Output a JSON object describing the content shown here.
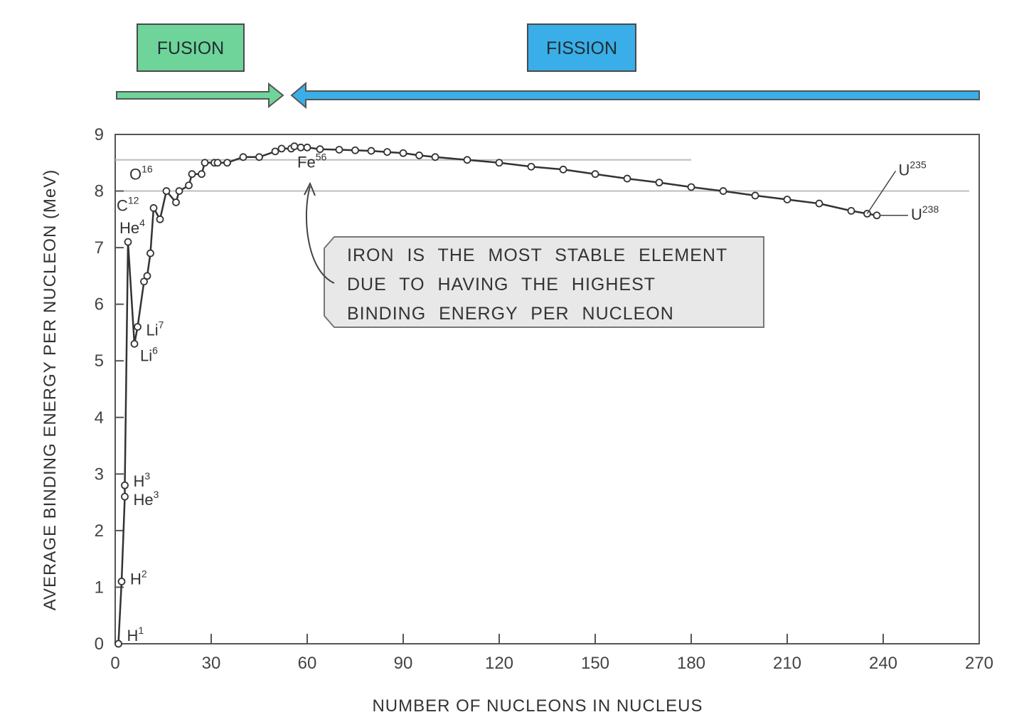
{
  "colors": {
    "fusion": "#6fd49a",
    "fission": "#3aaee8",
    "curve": "#333333",
    "grid": "#bdbdbd",
    "callout_fill": "#e8e8e8"
  },
  "banners": {
    "fusion_label": "FUSION",
    "fission_label": "FISSION"
  },
  "callout": {
    "lines": [
      "IRON IS THE MOST STABLE ELEMENT",
      "DUE TO HAVING THE HIGHEST",
      "BINDING ENERGY PER NUCLEON"
    ]
  },
  "chart_data": {
    "type": "line",
    "xlabel": "NUMBER OF NUCLEONS IN NUCLEUS",
    "ylabel": "AVERAGE BINDING ENERGY PER NUCLEON (MeV)",
    "xlim": [
      0,
      270
    ],
    "ylim": [
      0,
      9
    ],
    "xticks": [
      0,
      30,
      60,
      90,
      120,
      150,
      180,
      210,
      240,
      270
    ],
    "yticks": [
      0,
      1,
      2,
      3,
      4,
      5,
      6,
      7,
      8,
      9
    ],
    "reference_lines": [
      8.55,
      8.0
    ],
    "series": [
      {
        "x": [
          1,
          2,
          3,
          3,
          4,
          6,
          7,
          9,
          10,
          11,
          12,
          14,
          16,
          19,
          20,
          23,
          24,
          27,
          28,
          31,
          32,
          35,
          40,
          45,
          50,
          52,
          55,
          56,
          58,
          60,
          64,
          70,
          75,
          80,
          85,
          90,
          95,
          100,
          110,
          120,
          130,
          140,
          150,
          160,
          170,
          180,
          190,
          200,
          210,
          220,
          230,
          235,
          238
        ],
        "y": [
          0,
          1.1,
          2.6,
          2.8,
          7.1,
          5.3,
          5.6,
          6.4,
          6.5,
          6.9,
          7.7,
          7.5,
          8.0,
          7.8,
          8.0,
          8.1,
          8.3,
          8.3,
          8.5,
          8.5,
          8.5,
          8.5,
          8.6,
          8.6,
          8.7,
          8.75,
          8.75,
          8.79,
          8.77,
          8.77,
          8.74,
          8.73,
          8.72,
          8.71,
          8.69,
          8.67,
          8.63,
          8.6,
          8.55,
          8.5,
          8.43,
          8.38,
          8.3,
          8.22,
          8.15,
          8.07,
          8.0,
          7.92,
          7.85,
          7.78,
          7.65,
          7.6,
          7.57
        ]
      }
    ],
    "isotopes": [
      {
        "sym": "H",
        "mass": "1",
        "x": 1,
        "y": 0
      },
      {
        "sym": "H",
        "mass": "2",
        "x": 2,
        "y": 1.1
      },
      {
        "sym": "He",
        "mass": "3",
        "x": 3,
        "y": 2.6
      },
      {
        "sym": "H",
        "mass": "3",
        "x": 3,
        "y": 2.8
      },
      {
        "sym": "He",
        "mass": "4",
        "x": 4,
        "y": 7.1
      },
      {
        "sym": "Li",
        "mass": "6",
        "x": 6,
        "y": 5.3
      },
      {
        "sym": "Li",
        "mass": "7",
        "x": 7,
        "y": 5.6
      },
      {
        "sym": "C",
        "mass": "12",
        "x": 12,
        "y": 7.7
      },
      {
        "sym": "O",
        "mass": "16",
        "x": 16,
        "y": 8.0
      },
      {
        "sym": "Fe",
        "mass": "56",
        "x": 56,
        "y": 8.79
      },
      {
        "sym": "U",
        "mass": "235",
        "x": 235,
        "y": 7.6
      },
      {
        "sym": "U",
        "mass": "238",
        "x": 238,
        "y": 7.57
      }
    ]
  }
}
